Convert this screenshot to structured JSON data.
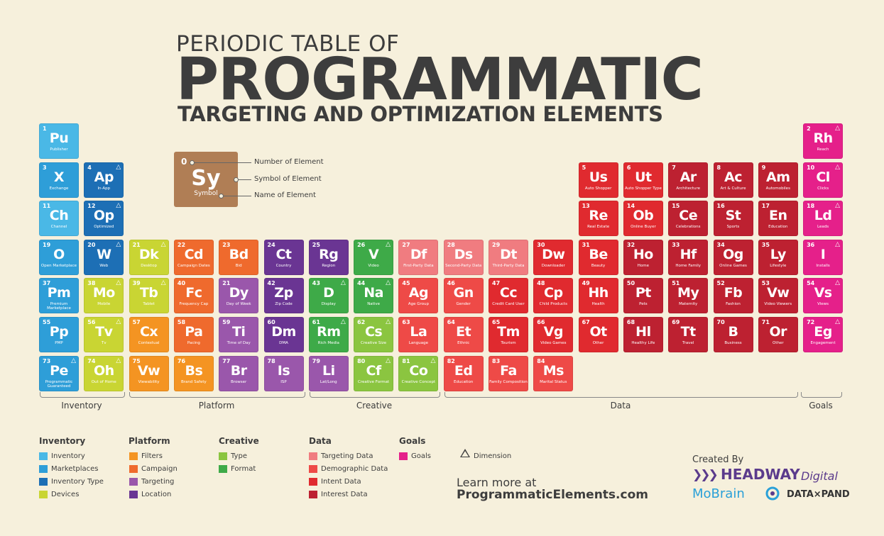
{
  "header": {
    "line1": "PERIODIC TABLE OF",
    "line2": "PROGRAMMATIC",
    "line3": "TARGETING AND OPTIMIZATION ELEMENTS"
  },
  "key": {
    "number": "0",
    "symbol": "Sy",
    "name": "Symbol",
    "labels": [
      "Number of Element",
      "Symbol of Element",
      "Name of Element"
    ]
  },
  "colors": {
    "inventory": "#4ab8e6",
    "marketplaces": "#2e9ed8",
    "inventory_type": "#1d6fb5",
    "devices": "#c9d533",
    "filters": "#f49422",
    "campaign": "#ef6a2d",
    "targeting": "#9a57ab",
    "location": "#6a3593",
    "type": "#8bc540",
    "format": "#3eaa48",
    "targeting_data": "#f07c80",
    "demographic_data": "#ee4a47",
    "intent_data": "#e02a2f",
    "interest_data": "#bd2131",
    "goals": "#e5208a"
  },
  "elements": [
    {
      "n": "1",
      "s": "Pu",
      "name": "Publisher",
      "c": "#4ab8e6",
      "d": false
    },
    {
      "n": "3",
      "s": "X",
      "name": "Exchange",
      "c": "#2e9ed8",
      "d": false
    },
    {
      "n": "4",
      "s": "Ap",
      "name": "In-App",
      "c": "#1d6fb5",
      "d": true
    },
    {
      "n": "11",
      "s": "Ch",
      "name": "Channel",
      "c": "#4ab8e6",
      "d": false
    },
    {
      "n": "12",
      "s": "Op",
      "name": "Optimized",
      "c": "#1d6fb5",
      "d": true
    },
    {
      "n": "19",
      "s": "O",
      "name": "Open Marketplace",
      "c": "#2e9ed8",
      "d": false
    },
    {
      "n": "20",
      "s": "W",
      "name": "Web",
      "c": "#1d6fb5",
      "d": true
    },
    {
      "n": "37",
      "s": "Pm",
      "name": "Premium Marketplace",
      "c": "#2e9ed8",
      "d": false
    },
    {
      "n": "38",
      "s": "Mo",
      "name": "Mobile",
      "c": "#c9d533",
      "d": true
    },
    {
      "n": "55",
      "s": "Pp",
      "name": "PMP",
      "c": "#2e9ed8",
      "d": false
    },
    {
      "n": "56",
      "s": "Tv",
      "name": "Tv",
      "c": "#c9d533",
      "d": true
    },
    {
      "n": "73",
      "s": "Pe",
      "name": "Programmatic Guaranteed",
      "c": "#2e9ed8",
      "d": true
    },
    {
      "n": "74",
      "s": "Oh",
      "name": "Out of Home",
      "c": "#c9d533",
      "d": true
    },
    {
      "n": "21",
      "s": "Dk",
      "name": "Desktop",
      "c": "#c9d533",
      "d": true
    },
    {
      "n": "39",
      "s": "Tb",
      "name": "Tablet",
      "c": "#c9d533",
      "d": true
    },
    {
      "n": "57",
      "s": "Cx",
      "name": "Contextual",
      "c": "#f49422",
      "d": false
    },
    {
      "n": "75",
      "s": "Vw",
      "name": "Viewability",
      "c": "#f49422",
      "d": false
    },
    {
      "n": "22",
      "s": "Cd",
      "name": "Campaign Dates",
      "c": "#ef6a2d",
      "d": false
    },
    {
      "n": "40",
      "s": "Fc",
      "name": "Frequency Cap",
      "c": "#ef6a2d",
      "d": false
    },
    {
      "n": "58",
      "s": "Pa",
      "name": "Pacing",
      "c": "#ef6a2d",
      "d": false
    },
    {
      "n": "76",
      "s": "Bs",
      "name": "Brand Safety",
      "c": "#f49422",
      "d": false
    },
    {
      "n": "23",
      "s": "Bd",
      "name": "Bid",
      "c": "#ef6a2d",
      "d": false
    },
    {
      "n": "21",
      "s": "Dy",
      "name": "Day of Week",
      "c": "#9a57ab",
      "d": false
    },
    {
      "n": "59",
      "s": "Ti",
      "name": "Time of Day",
      "c": "#9a57ab",
      "d": false
    },
    {
      "n": "77",
      "s": "Br",
      "name": "Browser",
      "c": "#9a57ab",
      "d": false
    },
    {
      "n": "24",
      "s": "Ct",
      "name": "Country",
      "c": "#6a3593",
      "d": false
    },
    {
      "n": "42",
      "s": "Zp",
      "name": "Zip Code",
      "c": "#6a3593",
      "d": false
    },
    {
      "n": "60",
      "s": "Dm",
      "name": "DMA",
      "c": "#6a3593",
      "d": false
    },
    {
      "n": "78",
      "s": "Is",
      "name": "ISP",
      "c": "#9a57ab",
      "d": false
    },
    {
      "n": "25",
      "s": "Rg",
      "name": "Region",
      "c": "#6a3593",
      "d": false
    },
    {
      "n": "43",
      "s": "D",
      "name": "Display",
      "c": "#3eaa48",
      "d": true
    },
    {
      "n": "61",
      "s": "Rm",
      "name": "Rich Media",
      "c": "#3eaa48",
      "d": true
    },
    {
      "n": "79",
      "s": "Li",
      "name": "Lat/Long",
      "c": "#9a57ab",
      "d": false
    },
    {
      "n": "26",
      "s": "V",
      "name": "Video",
      "c": "#3eaa48",
      "d": true
    },
    {
      "n": "44",
      "s": "Na",
      "name": "Native",
      "c": "#3eaa48",
      "d": true
    },
    {
      "n": "62",
      "s": "Cs",
      "name": "Creative Size",
      "c": "#8bc540",
      "d": true
    },
    {
      "n": "80",
      "s": "Cf",
      "name": "Creative Format",
      "c": "#8bc540",
      "d": true
    },
    {
      "n": "27",
      "s": "Df",
      "name": "First-Party Data",
      "c": "#f07c80",
      "d": false
    },
    {
      "n": "45",
      "s": "Ag",
      "name": "Age Group",
      "c": "#ee4a47",
      "d": false
    },
    {
      "n": "63",
      "s": "La",
      "name": "Language",
      "c": "#ee4a47",
      "d": false
    },
    {
      "n": "81",
      "s": "Co",
      "name": "Creative Concept",
      "c": "#8bc540",
      "d": true
    },
    {
      "n": "28",
      "s": "Ds",
      "name": "Second-Party Data",
      "c": "#f07c80",
      "d": false
    },
    {
      "n": "46",
      "s": "Gn",
      "name": "Gender",
      "c": "#ee4a47",
      "d": false
    },
    {
      "n": "64",
      "s": "Et",
      "name": "Ethnic",
      "c": "#ee4a47",
      "d": false
    },
    {
      "n": "82",
      "s": "Ed",
      "name": "Education",
      "c": "#ee4a47",
      "d": false
    },
    {
      "n": "29",
      "s": "Dt",
      "name": "Third-Party Data",
      "c": "#f07c80",
      "d": false
    },
    {
      "n": "47",
      "s": "Cc",
      "name": "Credit Card User",
      "c": "#e02a2f",
      "d": false
    },
    {
      "n": "65",
      "s": "Tm",
      "name": "Tourism",
      "c": "#e02a2f",
      "d": false
    },
    {
      "n": "83",
      "s": "Fa",
      "name": "Family Composition",
      "c": "#ee4a47",
      "d": false
    },
    {
      "n": "30",
      "s": "Dw",
      "name": "Downloader",
      "c": "#e02a2f",
      "d": false
    },
    {
      "n": "48",
      "s": "Cp",
      "name": "Child Products",
      "c": "#e02a2f",
      "d": false
    },
    {
      "n": "66",
      "s": "Vg",
      "name": "Video Games",
      "c": "#e02a2f",
      "d": false
    },
    {
      "n": "84",
      "s": "Ms",
      "name": "Marital Status",
      "c": "#ee4a47",
      "d": false
    },
    {
      "n": "5",
      "s": "Us",
      "name": "Auto Shopper",
      "c": "#e02a2f",
      "d": false
    },
    {
      "n": "13",
      "s": "Re",
      "name": "Real Estate",
      "c": "#e02a2f",
      "d": false
    },
    {
      "n": "31",
      "s": "Be",
      "name": "Beauty",
      "c": "#e02a2f",
      "d": false
    },
    {
      "n": "49",
      "s": "Hh",
      "name": "Health",
      "c": "#e02a2f",
      "d": false
    },
    {
      "n": "67",
      "s": "Ot",
      "name": "Other",
      "c": "#e02a2f",
      "d": false
    },
    {
      "n": "6",
      "s": "Ut",
      "name": "Auto Shopper Type",
      "c": "#e02a2f",
      "d": false
    },
    {
      "n": "14",
      "s": "Ob",
      "name": "Online Buyer",
      "c": "#e02a2f",
      "d": false
    },
    {
      "n": "32",
      "s": "Ho",
      "name": "Home",
      "c": "#bd2131",
      "d": false
    },
    {
      "n": "50",
      "s": "Pt",
      "name": "Pets",
      "c": "#bd2131",
      "d": false
    },
    {
      "n": "68",
      "s": "Hl",
      "name": "Healthy Life",
      "c": "#bd2131",
      "d": false
    },
    {
      "n": "7",
      "s": "Ar",
      "name": "Architecture",
      "c": "#bd2131",
      "d": false
    },
    {
      "n": "15",
      "s": "Ce",
      "name": "Celebrations",
      "c": "#bd2131",
      "d": false
    },
    {
      "n": "33",
      "s": "Hf",
      "name": "Home Family",
      "c": "#bd2131",
      "d": false
    },
    {
      "n": "51",
      "s": "My",
      "name": "Maternity",
      "c": "#bd2131",
      "d": false
    },
    {
      "n": "69",
      "s": "Tt",
      "name": "Travel",
      "c": "#bd2131",
      "d": false
    },
    {
      "n": "8",
      "s": "Ac",
      "name": "Art & Culture",
      "c": "#bd2131",
      "d": false
    },
    {
      "n": "16",
      "s": "St",
      "name": "Sports",
      "c": "#bd2131",
      "d": false
    },
    {
      "n": "34",
      "s": "Og",
      "name": "Online Games",
      "c": "#bd2131",
      "d": false
    },
    {
      "n": "52",
      "s": "Fb",
      "name": "Fashion",
      "c": "#bd2131",
      "d": false
    },
    {
      "n": "70",
      "s": "B",
      "name": "Business",
      "c": "#bd2131",
      "d": false
    },
    {
      "n": "9",
      "s": "Am",
      "name": "Automobiles",
      "c": "#bd2131",
      "d": false
    },
    {
      "n": "17",
      "s": "En",
      "name": "Education",
      "c": "#bd2131",
      "d": false
    },
    {
      "n": "35",
      "s": "Ly",
      "name": "Lifestyle",
      "c": "#bd2131",
      "d": false
    },
    {
      "n": "53",
      "s": "Vw",
      "name": "Video Viewers",
      "c": "#bd2131",
      "d": false
    },
    {
      "n": "71",
      "s": "Or",
      "name": "Other",
      "c": "#bd2131",
      "d": false
    },
    {
      "n": "2",
      "s": "Rh",
      "name": "Reach",
      "c": "#e5208a",
      "d": true
    },
    {
      "n": "10",
      "s": "Cl",
      "name": "Clicks",
      "c": "#e5208a",
      "d": true
    },
    {
      "n": "18",
      "s": "Ld",
      "name": "Leads",
      "c": "#e5208a",
      "d": true
    },
    {
      "n": "36",
      "s": "I",
      "name": "Installs",
      "c": "#e5208a",
      "d": true
    },
    {
      "n": "54",
      "s": "Vs",
      "name": "Views",
      "c": "#e5208a",
      "d": true
    },
    {
      "n": "72",
      "s": "Eg",
      "name": "Engagement",
      "c": "#e5208a",
      "d": true
    }
  ],
  "groups": [
    "Inventory",
    "Platform",
    "Creative",
    "Data",
    "Goals"
  ],
  "legend": {
    "inventory": {
      "title": "Inventory",
      "items": [
        "Inventory",
        "Marketplaces",
        "Inventory Type",
        "Devices"
      ]
    },
    "platform": {
      "title": "Platform",
      "items": [
        "Filters",
        "Campaign",
        "Targeting",
        "Location"
      ]
    },
    "creative": {
      "title": "Creative",
      "items": [
        "Type",
        "Format"
      ]
    },
    "data": {
      "title": "Data",
      "items": [
        "Targeting Data",
        "Demographic Data",
        "Intent Data",
        "Interest Data"
      ]
    },
    "goals": {
      "title": "Goals",
      "items": [
        "Goals"
      ]
    },
    "dimension": "Dimension"
  },
  "footer": {
    "learn_line1": "Learn more at",
    "learn_line2": "ProgrammaticElements.com",
    "created_by": "Created By",
    "headway": "HEADWAY",
    "digital": "Digital",
    "mobrain": "MoBrain",
    "dataxpand": "DATA×PAND"
  }
}
